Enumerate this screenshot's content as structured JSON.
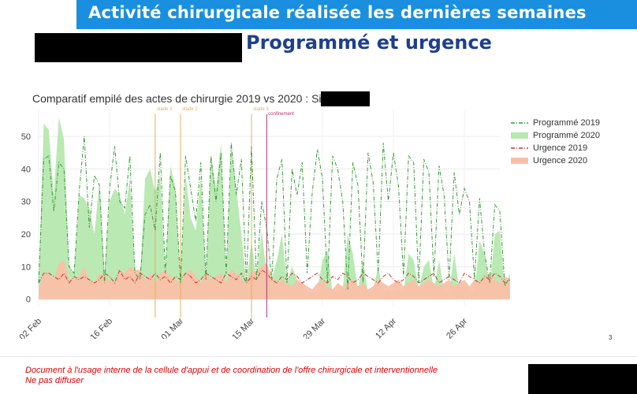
{
  "header": {
    "banner_title": "Activité chirurgicale réalisée les dernières semaines",
    "subtitle": "Programmé et urgence"
  },
  "footer": {
    "line1": "Document à l'usage interne de la cellule d'appui et de coordination de l'offre chirurgicale et interventionnelle",
    "line2": "Ne pas diffuser",
    "page_number": "3"
  },
  "colors": {
    "banner": "#1a8fe0",
    "subtitle": "#1f3f8f",
    "footer_text": "#e00000",
    "prog2019": "#3a9a3a",
    "prog2020_fill": "#b6e8b0",
    "urg2019": "#cc3333",
    "urg2020_fill": "#f9c0a8",
    "stade_line": "#e0b060",
    "confinement_line": "#b03070"
  },
  "chart_data": {
    "type": "area",
    "title": "Comparatif empilé des actes de chirurgie 2019 vs 2020 : Site",
    "x_ticks": [
      "02 Feb",
      "16 Feb",
      "01 Mar",
      "15 Mar",
      "29 Mar",
      "12 Apr",
      "26 Apr"
    ],
    "y_ticks": [
      0,
      10,
      20,
      30,
      40,
      50
    ],
    "xlim": [
      0,
      91
    ],
    "ylim": [
      -2,
      58
    ],
    "grid": true,
    "legend_position": "right",
    "events": [
      {
        "label": "stade 1",
        "x": 23
      },
      {
        "label": "stade 2",
        "x": 28
      },
      {
        "label": "stade 3",
        "x": 42
      },
      {
        "label": "confinement",
        "x": 45
      }
    ],
    "series": [
      {
        "name": "Programmé 2019",
        "style": "dashdot",
        "color": "#3a9a3a",
        "values": [
          5,
          43,
          44,
          27,
          42,
          40,
          10,
          8,
          33,
          50,
          22,
          38,
          35,
          5,
          34,
          47,
          30,
          28,
          44,
          8,
          6,
          26,
          29,
          21,
          45,
          8,
          38,
          33,
          5,
          44,
          34,
          24,
          42,
          6,
          44,
          30,
          45,
          8,
          48,
          32,
          43,
          5,
          47,
          6,
          30,
          22,
          6,
          37,
          43,
          5,
          40,
          32,
          42,
          8,
          33,
          46,
          37,
          5,
          44,
          40,
          30,
          3,
          42,
          35,
          5,
          45,
          36,
          8,
          48,
          30,
          45,
          35,
          7,
          44,
          42,
          5,
          43,
          39,
          7,
          41,
          32,
          6,
          39,
          26,
          34,
          30,
          6,
          31,
          14,
          5,
          29,
          27,
          4,
          7
        ]
      },
      {
        "name": "Programmé 2020",
        "style": "area",
        "color": "#b6e8b0",
        "values": [
          4,
          54,
          52,
          32,
          56,
          49,
          10,
          8,
          32,
          31,
          28,
          20,
          36,
          8,
          30,
          34,
          32,
          26,
          37,
          8,
          6,
          37,
          40,
          33,
          38,
          6,
          41,
          34,
          5,
          38,
          25,
          21,
          38,
          6,
          44,
          34,
          48,
          6,
          47,
          34,
          20,
          5,
          18,
          6,
          21,
          8,
          6,
          12,
          20,
          5,
          10,
          6,
          4,
          2,
          2,
          3,
          12,
          15,
          2,
          2,
          3,
          20,
          14,
          3,
          12,
          2,
          3,
          10,
          2,
          3,
          2,
          3,
          2,
          14,
          12,
          3,
          10,
          12,
          3,
          12,
          3,
          2,
          14,
          3,
          4,
          3,
          2,
          18,
          14,
          3,
          20,
          21,
          3,
          8
        ]
      },
      {
        "name": "Urgence 2019",
        "style": "dashdot",
        "color": "#cc3333",
        "values": [
          5,
          8,
          8,
          7,
          6,
          8,
          5,
          7,
          6,
          7,
          6,
          5,
          6,
          8,
          7,
          5,
          9,
          6,
          7,
          5,
          8,
          7,
          6,
          8,
          6,
          7,
          5,
          7,
          6,
          8,
          7,
          5,
          6,
          8,
          7,
          6,
          5,
          8,
          7,
          6,
          8,
          5,
          7,
          6,
          9,
          8,
          6,
          5,
          7,
          6,
          8,
          7,
          5,
          6,
          7,
          8,
          6,
          5,
          7,
          6,
          8,
          7,
          5,
          6,
          8,
          7,
          6,
          5,
          7,
          8,
          6,
          5,
          6,
          8,
          7,
          5,
          6,
          7,
          8,
          5,
          6,
          7,
          6,
          5,
          8,
          7,
          6,
          5,
          7,
          6,
          8,
          7,
          5,
          6
        ]
      },
      {
        "name": "Urgence 2020",
        "style": "area",
        "color": "#f9c0a8",
        "values": [
          3,
          8,
          8,
          6,
          11,
          12,
          6,
          6,
          7,
          10,
          6,
          5,
          8,
          7,
          6,
          5,
          9,
          8,
          10,
          9,
          9,
          6,
          8,
          5,
          8,
          9,
          7,
          6,
          5,
          8,
          9,
          7,
          5,
          8,
          6,
          7,
          8,
          5,
          9,
          8,
          6,
          5,
          9,
          8,
          10,
          11,
          7,
          5,
          6,
          5,
          4,
          6,
          5,
          4,
          3,
          5,
          6,
          4,
          3,
          5,
          4,
          5,
          6,
          4,
          5,
          3,
          4,
          6,
          5,
          4,
          5,
          6,
          4,
          5,
          6,
          4,
          5,
          6,
          5,
          4,
          5,
          6,
          4,
          5,
          6,
          4,
          6,
          5,
          7,
          8,
          6,
          5,
          7,
          6
        ]
      }
    ]
  }
}
